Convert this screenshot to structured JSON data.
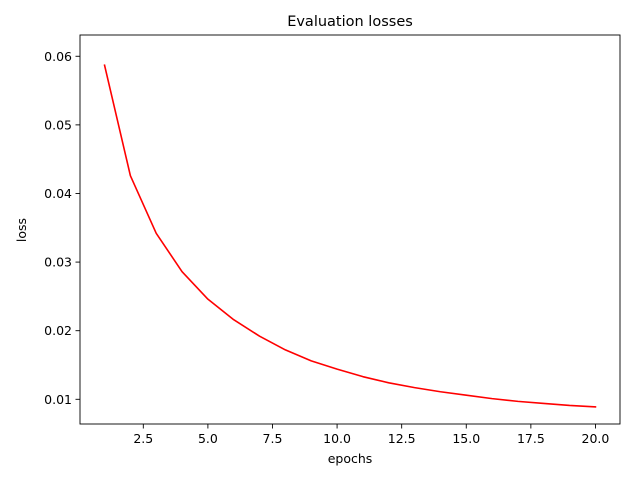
{
  "chart_data": {
    "type": "line",
    "title": "Evaluation losses",
    "xlabel": "epochs",
    "ylabel": "loss",
    "xlim": [
      0.05,
      20.95
    ],
    "ylim": [
      0.0064,
      0.0631
    ],
    "grid": false,
    "x_ticks": [
      2.5,
      5.0,
      7.5,
      10.0,
      12.5,
      15.0,
      17.5,
      20.0
    ],
    "x_tick_labels": [
      "2.5",
      "5.0",
      "7.5",
      "10.0",
      "12.5",
      "15.0",
      "17.5",
      "20.0"
    ],
    "y_ticks": [
      0.01,
      0.02,
      0.03,
      0.04,
      0.05,
      0.06
    ],
    "y_tick_labels": [
      "0.01",
      "0.02",
      "0.03",
      "0.04",
      "0.05",
      "0.06"
    ],
    "series": [
      {
        "color": "#ff0000",
        "x": [
          1,
          2,
          3,
          4,
          5,
          6,
          7,
          8,
          9,
          10,
          11,
          12,
          13,
          14,
          15,
          16,
          17,
          18,
          19,
          20
        ],
        "values": [
          0.0587,
          0.0426,
          0.0342,
          0.0286,
          0.0246,
          0.0216,
          0.0192,
          0.0172,
          0.0156,
          0.0144,
          0.0133,
          0.0124,
          0.0117,
          0.0111,
          0.0106,
          0.0101,
          0.0097,
          0.0094,
          0.0091,
          0.0089
        ]
      }
    ]
  }
}
